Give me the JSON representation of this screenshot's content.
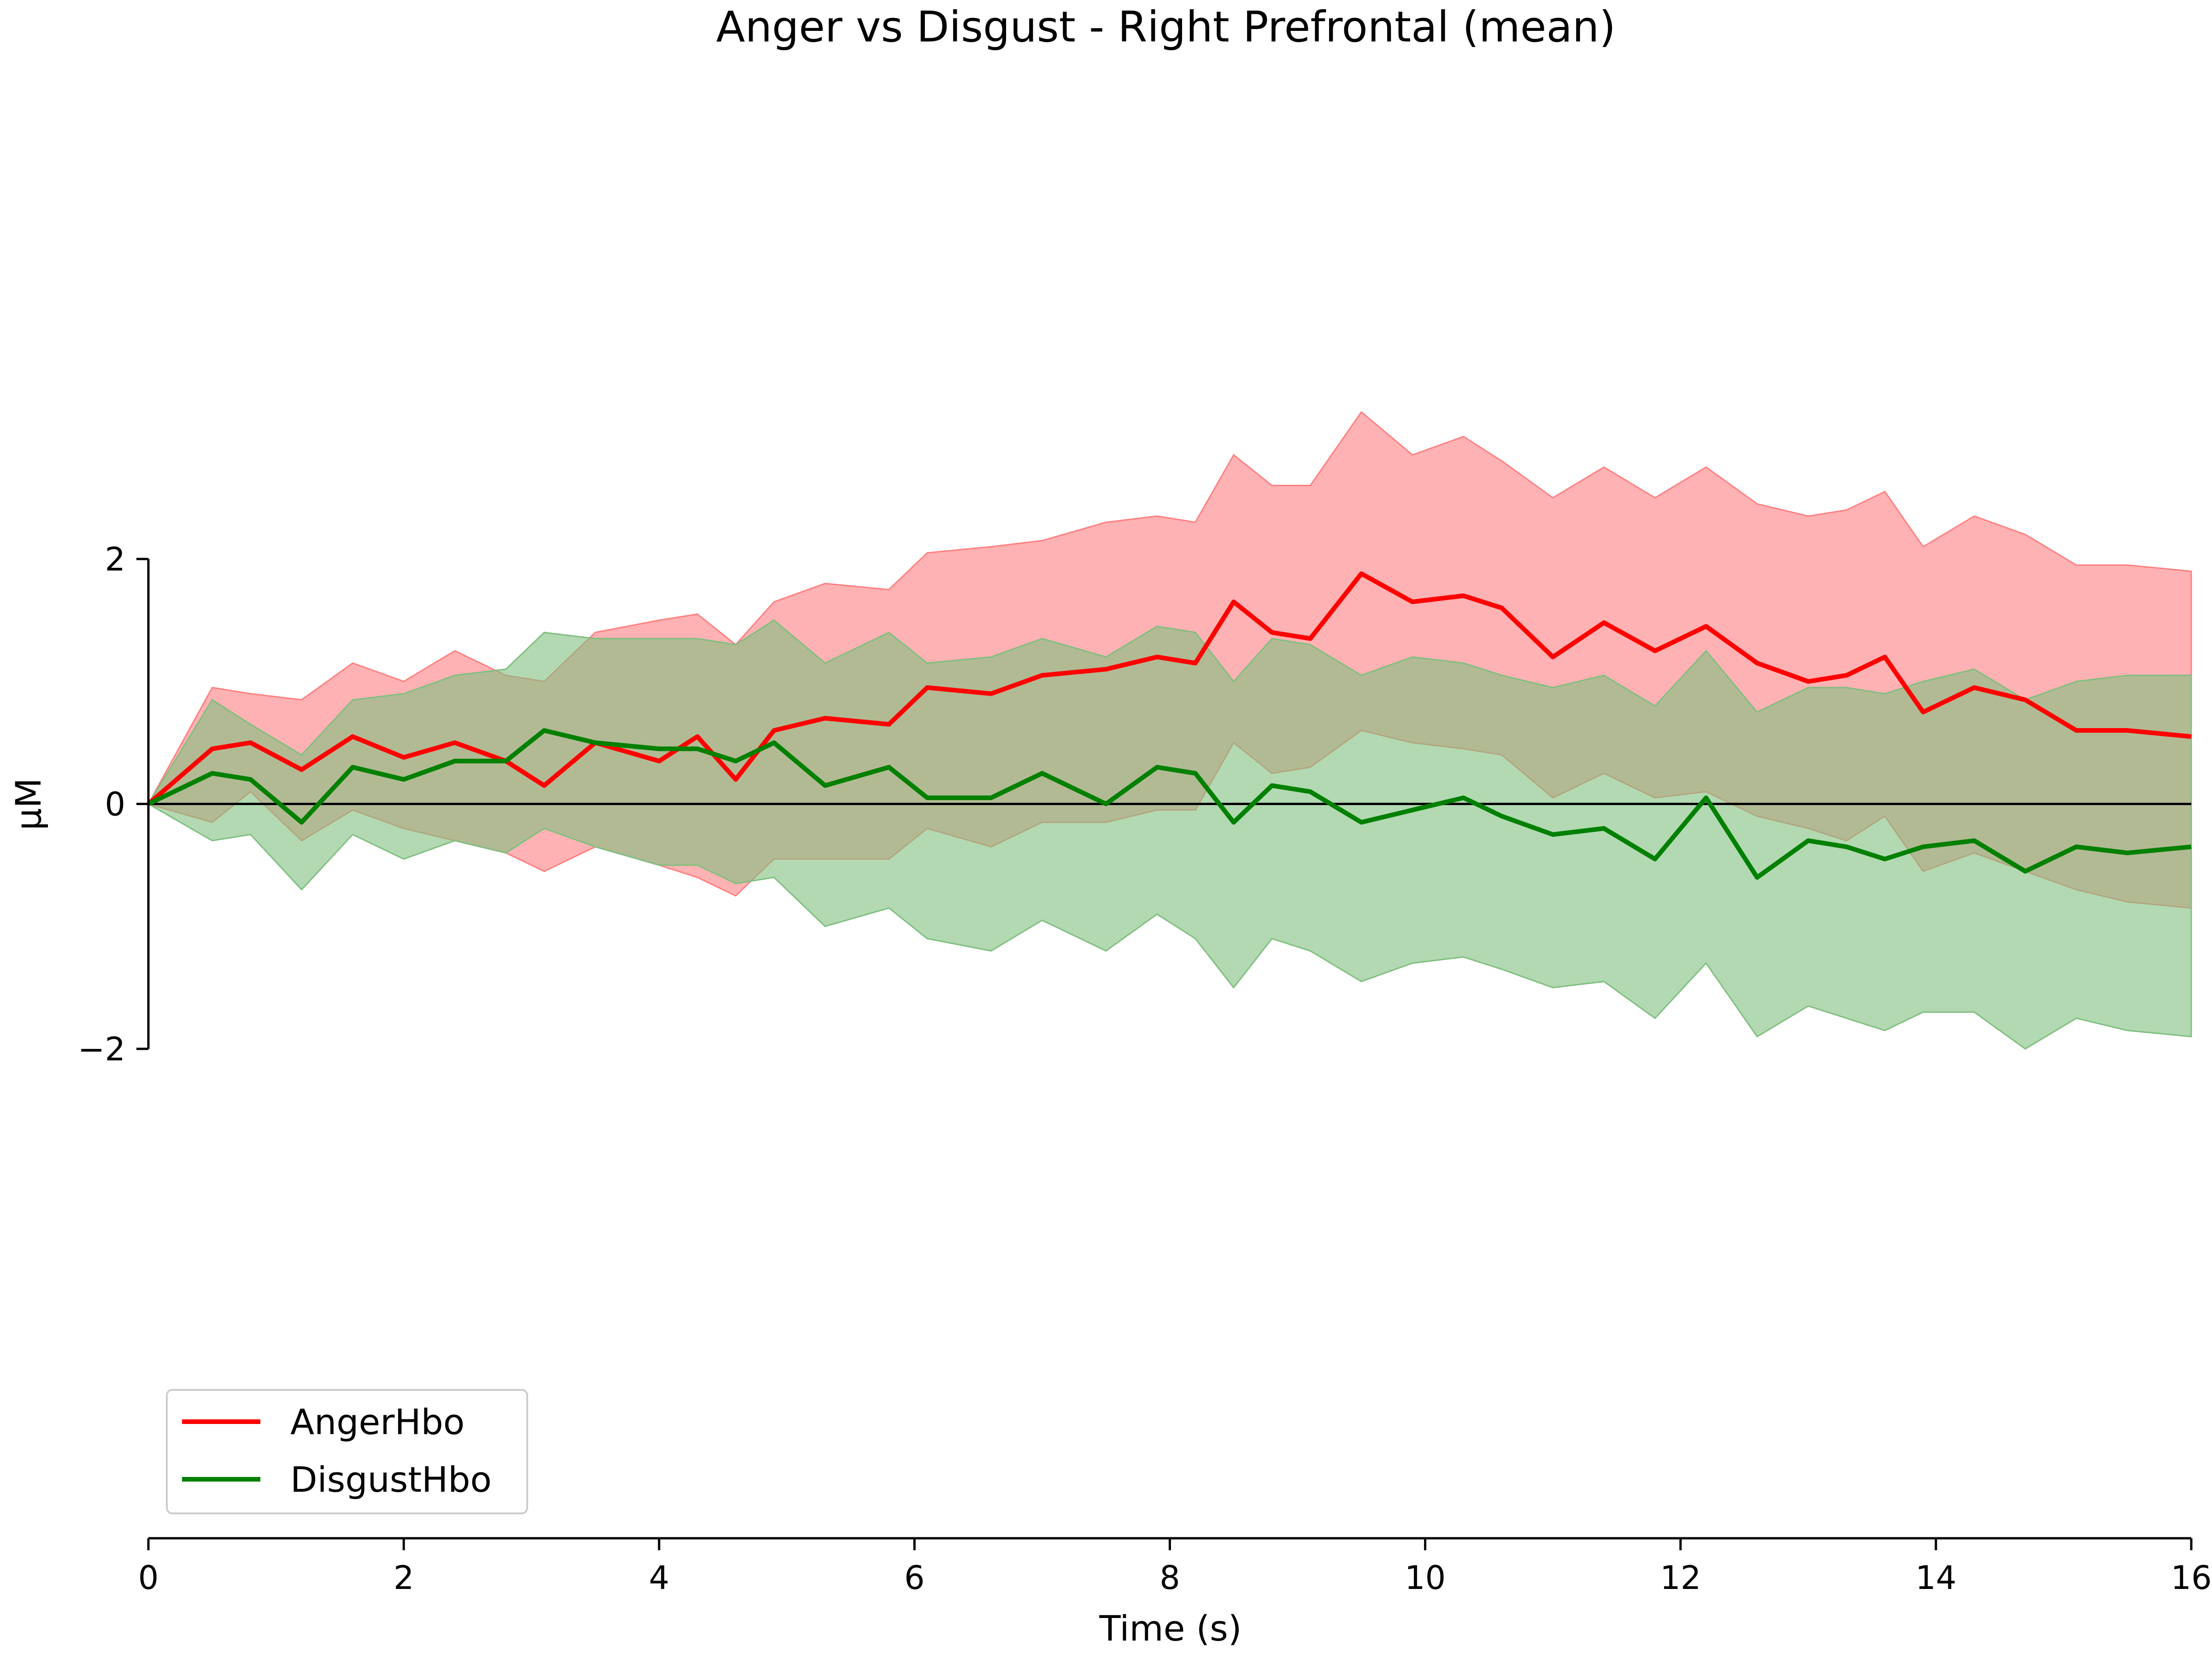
{
  "chart_data": {
    "type": "line",
    "title": "Anger vs Disgust - Right Prefrontal (mean)",
    "xlabel": "Time (s)",
    "ylabel": "µM",
    "xlim": [
      0,
      16
    ],
    "ylim": [
      -2,
      2
    ],
    "x_ticks": [
      0,
      2,
      4,
      6,
      8,
      10,
      12,
      14,
      16
    ],
    "y_ticks": [
      -2,
      0,
      2
    ],
    "x_tick_labels": [
      "0",
      "2",
      "4",
      "6",
      "8",
      "10",
      "12",
      "14",
      "16"
    ],
    "y_tick_labels": [
      "−2",
      "0",
      "2"
    ],
    "zero_line": true,
    "grid": false,
    "legend_position": "lower-left",
    "series": [
      {
        "name": "AngerHbo",
        "color": "#ff0000",
        "band_color": "#ff7f80",
        "x": [
          0,
          0.5,
          0.8,
          1.2,
          1.6,
          2.0,
          2.4,
          2.8,
          3.1,
          3.5,
          4.0,
          4.3,
          4.6,
          4.9,
          5.3,
          5.8,
          6.1,
          6.6,
          7.0,
          7.5,
          7.9,
          8.2,
          8.5,
          8.8,
          9.1,
          9.5,
          9.9,
          10.3,
          10.6,
          11.0,
          11.4,
          11.8,
          12.2,
          12.6,
          13.0,
          13.3,
          13.6,
          13.9,
          14.3,
          14.7,
          15.1,
          15.5,
          16.0
        ],
        "values": [
          0,
          0.45,
          0.5,
          0.28,
          0.55,
          0.38,
          0.5,
          0.35,
          0.15,
          0.5,
          0.35,
          0.55,
          0.2,
          0.6,
          0.7,
          0.65,
          0.95,
          0.9,
          1.05,
          1.1,
          1.2,
          1.15,
          1.65,
          1.4,
          1.35,
          1.88,
          1.65,
          1.7,
          1.6,
          1.2,
          1.48,
          1.25,
          1.45,
          1.15,
          1.0,
          1.05,
          1.2,
          0.75,
          0.95,
          0.85,
          0.6,
          0.6,
          0.55
        ],
        "upper": [
          0,
          0.95,
          0.9,
          0.85,
          1.15,
          1.0,
          1.25,
          1.05,
          1.0,
          1.4,
          1.5,
          1.55,
          1.3,
          1.65,
          1.8,
          1.75,
          2.05,
          2.1,
          2.15,
          2.3,
          2.35,
          2.3,
          2.85,
          2.6,
          2.6,
          3.2,
          2.85,
          3.0,
          2.8,
          2.5,
          2.75,
          2.5,
          2.75,
          2.45,
          2.35,
          2.4,
          2.55,
          2.1,
          2.35,
          2.2,
          1.95,
          1.95,
          1.9
        ],
        "lower": [
          0,
          -0.15,
          0.1,
          -0.3,
          -0.05,
          -0.2,
          -0.3,
          -0.4,
          -0.55,
          -0.35,
          -0.5,
          -0.6,
          -0.75,
          -0.45,
          -0.45,
          -0.45,
          -0.2,
          -0.35,
          -0.15,
          -0.15,
          -0.05,
          -0.05,
          0.5,
          0.25,
          0.3,
          0.6,
          0.5,
          0.45,
          0.4,
          0.05,
          0.25,
          0.05,
          0.1,
          -0.1,
          -0.2,
          -0.3,
          -0.1,
          -0.55,
          -0.4,
          -0.55,
          -0.7,
          -0.8,
          -0.85
        ]
      },
      {
        "name": "DisgustHbo",
        "color": "#008000",
        "band_color": "#7fbf7f",
        "x": [
          0,
          0.5,
          0.8,
          1.2,
          1.6,
          2.0,
          2.4,
          2.8,
          3.1,
          3.5,
          4.0,
          4.3,
          4.6,
          4.9,
          5.3,
          5.8,
          6.1,
          6.6,
          7.0,
          7.5,
          7.9,
          8.2,
          8.5,
          8.8,
          9.1,
          9.5,
          9.9,
          10.3,
          10.6,
          11.0,
          11.4,
          11.8,
          12.2,
          12.6,
          13.0,
          13.3,
          13.6,
          13.9,
          14.3,
          14.7,
          15.1,
          15.5,
          16.0
        ],
        "values": [
          0,
          0.25,
          0.2,
          -0.15,
          0.3,
          0.2,
          0.35,
          0.35,
          0.6,
          0.5,
          0.45,
          0.45,
          0.35,
          0.5,
          0.15,
          0.3,
          0.05,
          0.05,
          0.25,
          0.0,
          0.3,
          0.25,
          -0.15,
          0.15,
          0.1,
          -0.15,
          -0.05,
          0.05,
          -0.1,
          -0.25,
          -0.2,
          -0.45,
          0.05,
          -0.6,
          -0.3,
          -0.35,
          -0.45,
          -0.35,
          -0.3,
          -0.55,
          -0.35,
          -0.4,
          -0.35
        ],
        "upper": [
          0,
          0.85,
          0.65,
          0.4,
          0.85,
          0.9,
          1.05,
          1.1,
          1.4,
          1.35,
          1.35,
          1.35,
          1.3,
          1.5,
          1.15,
          1.4,
          1.15,
          1.2,
          1.35,
          1.2,
          1.45,
          1.4,
          1.0,
          1.35,
          1.3,
          1.05,
          1.2,
          1.15,
          1.05,
          0.95,
          1.05,
          0.8,
          1.25,
          0.75,
          0.95,
          0.95,
          0.9,
          1.0,
          1.1,
          0.85,
          1.0,
          1.05,
          1.05
        ],
        "lower": [
          0,
          -0.3,
          -0.25,
          -0.7,
          -0.25,
          -0.45,
          -0.3,
          -0.4,
          -0.2,
          -0.35,
          -0.5,
          -0.5,
          -0.65,
          -0.6,
          -1.0,
          -0.85,
          -1.1,
          -1.2,
          -0.95,
          -1.2,
          -0.9,
          -1.1,
          -1.5,
          -1.1,
          -1.2,
          -1.45,
          -1.3,
          -1.25,
          -1.35,
          -1.5,
          -1.45,
          -1.75,
          -1.3,
          -1.9,
          -1.65,
          -1.75,
          -1.85,
          -1.7,
          -1.7,
          -2.0,
          -1.75,
          -1.85,
          -1.9
        ]
      }
    ]
  }
}
